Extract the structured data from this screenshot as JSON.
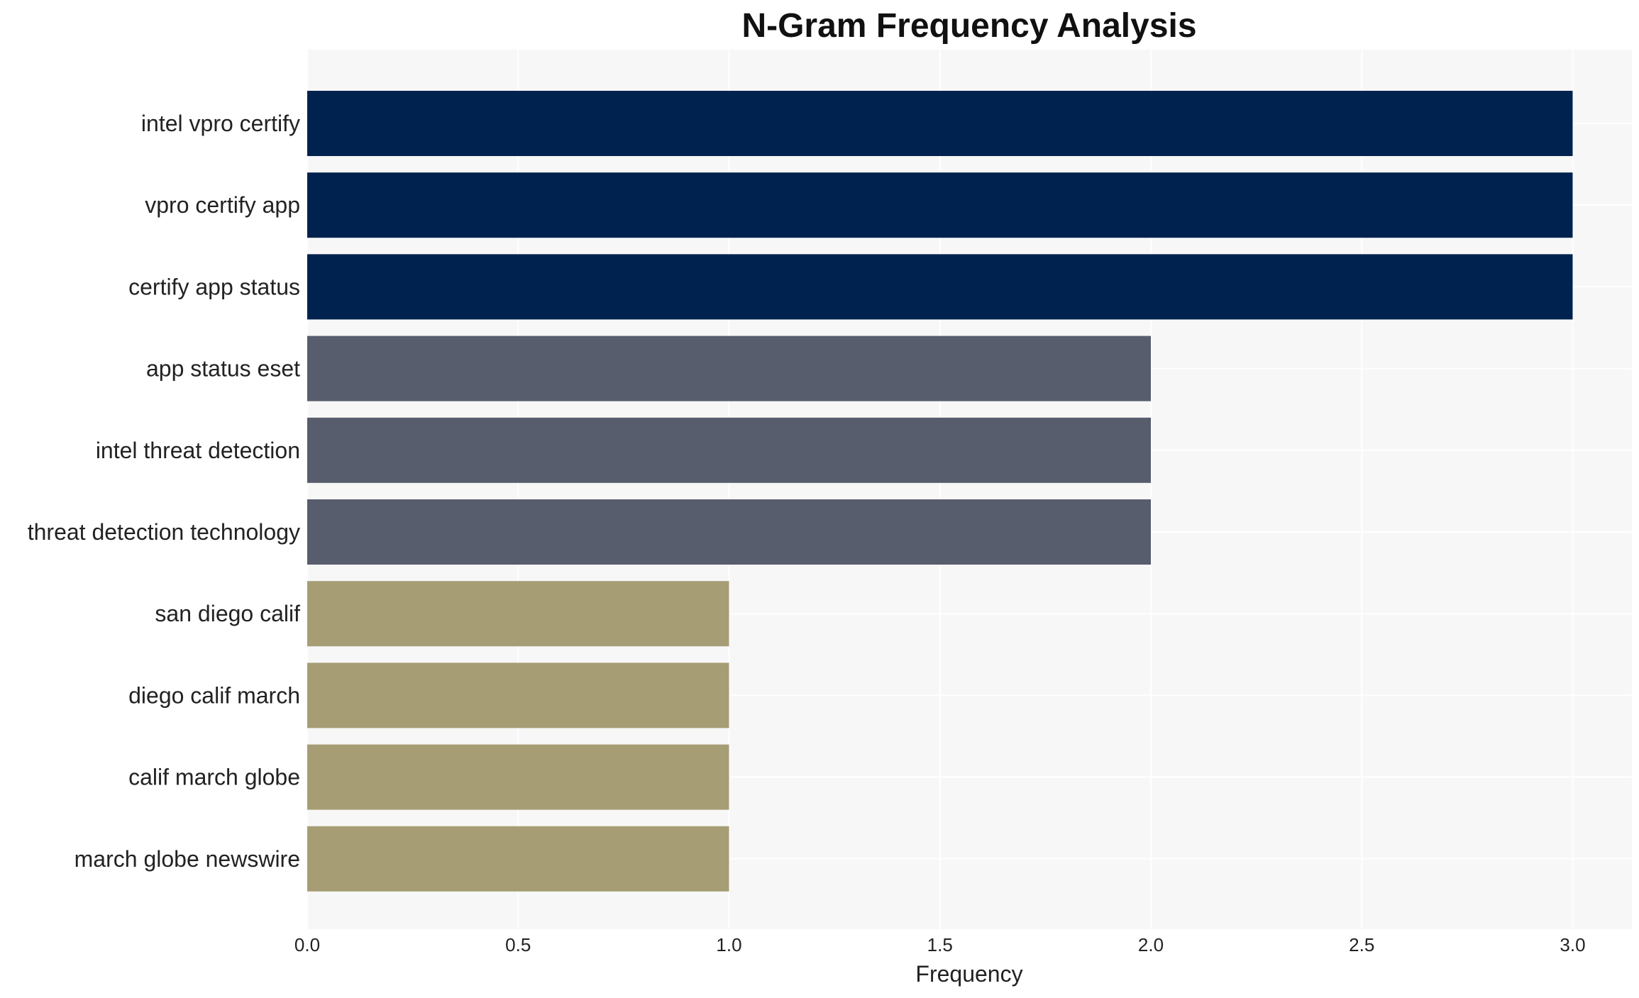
{
  "chart_data": {
    "type": "bar",
    "orientation": "horizontal",
    "title": "N-Gram Frequency Analysis",
    "xlabel": "Frequency",
    "ylabel": "",
    "xlim": [
      0,
      3.15
    ],
    "x_ticks": [
      "0.0",
      "0.5",
      "1.0",
      "1.5",
      "2.0",
      "2.5",
      "3.0"
    ],
    "x_tick_values": [
      0,
      0.5,
      1.0,
      1.5,
      2.0,
      2.5,
      3.0
    ],
    "grid": true,
    "categories": [
      "intel vpro certify",
      "vpro certify app",
      "certify app status",
      "app status eset",
      "intel threat detection",
      "threat detection technology",
      "san diego calif",
      "diego calif march",
      "calif march globe",
      "march globe newswire"
    ],
    "values": [
      3,
      3,
      3,
      2,
      2,
      2,
      1,
      1,
      1,
      1
    ],
    "bar_colors": [
      "#00224e",
      "#00224e",
      "#00224e",
      "#575d6d",
      "#575d6d",
      "#575d6d",
      "#a69d75",
      "#a69d75",
      "#a69d75",
      "#a69d75"
    ],
    "plot_background": "#f7f7f7",
    "grid_color": "#ffffff"
  }
}
